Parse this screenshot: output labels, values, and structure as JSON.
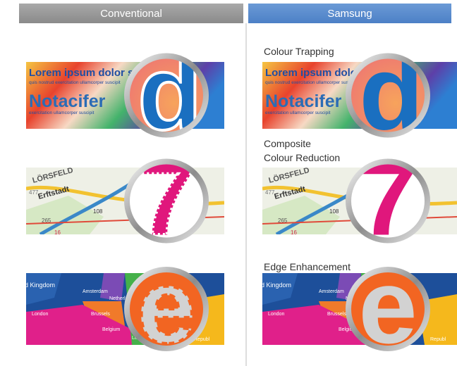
{
  "columns": [
    "Conventional",
    "Samsung"
  ],
  "features": [
    {
      "label": [
        "Colour Trapping"
      ]
    },
    {
      "label": [
        "Composite",
        "Colour Reduction"
      ]
    },
    {
      "label": [
        "Edge Enhancement"
      ]
    }
  ],
  "glyphs": [
    "d",
    "7",
    "e"
  ],
  "samples": {
    "text": {
      "headline": "Lorem ipsum dolor sit met",
      "subline": "quis nostrud exercitation ullamcorper suscipit",
      "word": "Notacifer",
      "caption": "exercitation ullamcorper suscipit"
    },
    "map": {
      "labels": [
        "LÖRSFELD",
        "Erftstadt",
        "477",
        "265",
        "16",
        "108"
      ]
    },
    "europe": {
      "labels": [
        "d Kingdom",
        "Amsterdam",
        "Netherlands",
        "London",
        "Brussels",
        "Belgium",
        "Luxe",
        "Republ"
      ]
    }
  }
}
